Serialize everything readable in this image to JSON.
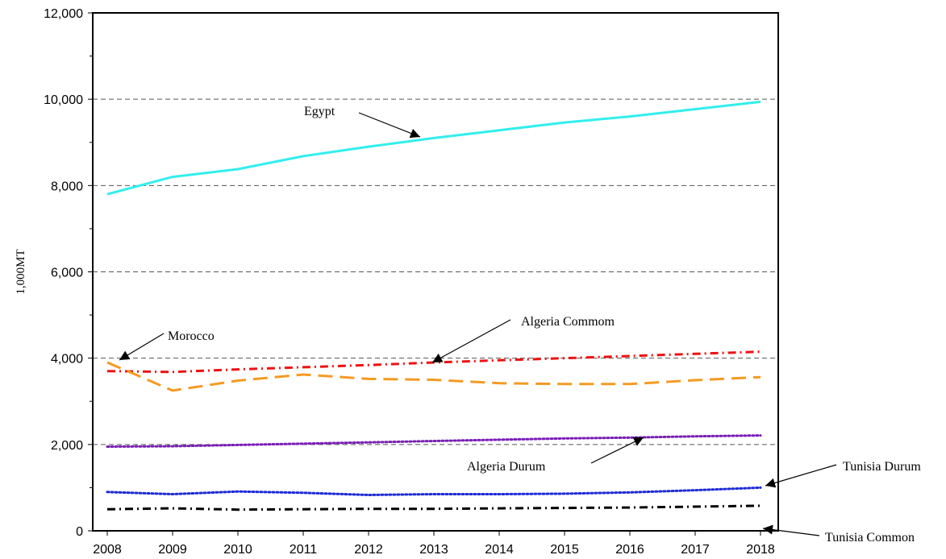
{
  "chart_data": {
    "type": "line",
    "title": "",
    "xlabel": "",
    "ylabel": "1,000MT",
    "x": [
      2008,
      2009,
      2010,
      2011,
      2012,
      2013,
      2014,
      2015,
      2016,
      2017,
      2018
    ],
    "xlim": [
      2008,
      2018
    ],
    "ylim": [
      0,
      12000
    ],
    "yticks": [
      0,
      2000,
      4000,
      6000,
      8000,
      10000,
      12000
    ],
    "yticklabels": [
      "0",
      "2,000",
      "4,000",
      "6,000",
      "8,000",
      "10,000",
      "12,000"
    ],
    "xticklabels": [
      "2008",
      "2009",
      "2010",
      "2011",
      "2012",
      "2013",
      "2014",
      "2015",
      "2016",
      "2017",
      "2018"
    ],
    "grid": "horizontal dashed",
    "legend": "none",
    "series": [
      {
        "name": "Egypt",
        "color": "#33eeee",
        "dash": "solid",
        "values": [
          7800,
          8200,
          8380,
          8680,
          8900,
          9100,
          9280,
          9460,
          9600,
          9770,
          9940
        ]
      },
      {
        "name": "Algeria Commom",
        "color": "#ee1111",
        "dash": "dashdot",
        "values": [
          3700,
          3680,
          3740,
          3790,
          3840,
          3900,
          3950,
          4000,
          4050,
          4100,
          4150
        ]
      },
      {
        "name": "Morocco",
        "color": "#f59a22",
        "dash": "dashed",
        "values": [
          3900,
          3250,
          3480,
          3620,
          3520,
          3500,
          3420,
          3400,
          3400,
          3490,
          3560
        ]
      },
      {
        "name": "Algeria Durum",
        "color": "#7a1fb4",
        "dash": "dotted",
        "values": [
          1950,
          1960,
          1990,
          2020,
          2050,
          2080,
          2110,
          2140,
          2160,
          2190,
          2210
        ]
      },
      {
        "name": "Tunisia Durum",
        "color": "#1f2bd6",
        "dash": "dotted",
        "values": [
          900,
          850,
          910,
          880,
          830,
          850,
          850,
          860,
          890,
          940,
          1000
        ]
      },
      {
        "name": "Tunisia Common",
        "color": "#000000",
        "dash": "dashdot",
        "values": [
          500,
          520,
          490,
          500,
          510,
          510,
          520,
          530,
          540,
          560,
          580
        ]
      }
    ],
    "annotations": [
      {
        "text": "Egypt",
        "series": "Egypt"
      },
      {
        "text": "Morocco",
        "series": "Morocco"
      },
      {
        "text": "Algeria Commom",
        "series": "Algeria Commom"
      },
      {
        "text": "Algeria Durum",
        "series": "Algeria Durum"
      },
      {
        "text": "Tunisia Durum",
        "series": "Tunisia Durum"
      },
      {
        "text": "Tunisia Common",
        "series": "Tunisia Common"
      }
    ]
  }
}
